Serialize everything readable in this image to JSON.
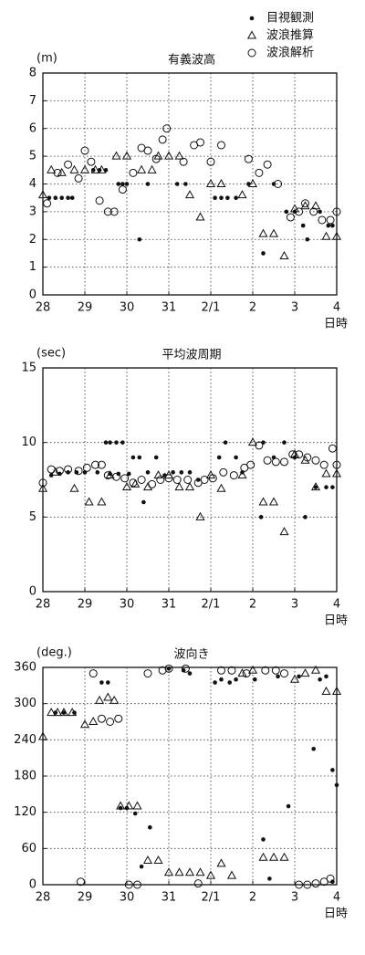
{
  "chart_data": [
    {
      "type": "scatter",
      "title": "有義波高",
      "ylabel": "(m)",
      "xlabel": "日時",
      "xlim": [
        0,
        7
      ],
      "ylim": [
        0,
        8
      ],
      "grid": true,
      "xticks": [
        {
          "value": 0,
          "label": "28"
        },
        {
          "value": 1,
          "label": "29"
        },
        {
          "value": 2,
          "label": "30"
        },
        {
          "value": 3,
          "label": "31"
        },
        {
          "value": 4,
          "label": "2/1"
        },
        {
          "value": 5,
          "label": "2"
        },
        {
          "value": 6,
          "label": "3"
        },
        {
          "value": 7,
          "label": "4"
        }
      ],
      "yticks": [
        0,
        1,
        2,
        3,
        4,
        5,
        6,
        7,
        8
      ],
      "series": [
        {
          "name": "目視観測",
          "marker": "dot",
          "color": "#111",
          "x": [
            0.15,
            0.3,
            0.45,
            0.6,
            0.7,
            1.2,
            1.35,
            1.5,
            1.8,
            1.9,
            2.0,
            2.3,
            2.5,
            3.2,
            3.4,
            4.1,
            4.25,
            4.4,
            4.6,
            4.9,
            5.25,
            5.5,
            5.8,
            6.0,
            6.2,
            6.3,
            6.6,
            6.8,
            6.9
          ],
          "values": [
            3.5,
            3.5,
            3.5,
            3.5,
            3.5,
            4.5,
            4.5,
            4.5,
            4,
            4,
            4,
            2,
            4,
            4,
            4,
            3.5,
            3.5,
            3.5,
            3.5,
            4,
            1.5,
            4,
            3,
            3,
            2.5,
            2,
            3,
            2.5,
            2.5
          ]
        },
        {
          "name": "波浪推算",
          "marker": "triangle",
          "color": "#111",
          "x": [
            0,
            0.2,
            0.45,
            0.75,
            1.0,
            1.25,
            1.4,
            1.75,
            2.0,
            2.35,
            2.6,
            2.75,
            3.0,
            3.25,
            3.5,
            3.75,
            4.0,
            4.25,
            4.75,
            5.0,
            5.25,
            5.5,
            5.75,
            6.0,
            6.25,
            6.5,
            6.75,
            7.0
          ],
          "values": [
            3.6,
            4.5,
            4.4,
            4.5,
            4.5,
            4.5,
            4.5,
            5,
            5,
            4.5,
            4.5,
            5,
            5,
            5,
            3.6,
            2.8,
            4,
            4,
            3.6,
            4,
            2.2,
            2.2,
            1.4,
            3.1,
            3.2,
            3.2,
            2.1,
            2.1
          ]
        },
        {
          "name": "波浪解析",
          "marker": "circle",
          "color": "#111",
          "x": [
            0.1,
            0.35,
            0.6,
            0.85,
            1.0,
            1.15,
            1.35,
            1.55,
            1.7,
            1.9,
            2.15,
            2.35,
            2.5,
            2.7,
            2.85,
            2.95,
            3.35,
            3.6,
            3.75,
            4.0,
            4.25,
            4.9,
            5.15,
            5.35,
            5.6,
            5.9,
            6.1,
            6.25,
            6.45,
            6.65,
            6.85,
            7.0
          ],
          "values": [
            3.3,
            4.4,
            4.7,
            4.2,
            5.2,
            4.8,
            3.4,
            3.0,
            3.0,
            3.8,
            4.4,
            5.3,
            5.2,
            4.9,
            5.6,
            6,
            4.8,
            5.4,
            5.5,
            4.8,
            5.4,
            4.9,
            4.4,
            4.7,
            4.0,
            2.8,
            3.0,
            3.3,
            3.0,
            2.7,
            2.7,
            3.0
          ]
        }
      ]
    },
    {
      "type": "scatter",
      "title": "平均波周期",
      "ylabel": "(sec)",
      "xlabel": "日時",
      "xlim": [
        0,
        7
      ],
      "ylim": [
        0,
        15
      ],
      "grid": true,
      "xticks": [
        {
          "value": 0,
          "label": "28"
        },
        {
          "value": 1,
          "label": "29"
        },
        {
          "value": 2,
          "label": "30"
        },
        {
          "value": 3,
          "label": "31"
        },
        {
          "value": 4,
          "label": "2/1"
        },
        {
          "value": 5,
          "label": "2"
        },
        {
          "value": 6,
          "label": "3"
        },
        {
          "value": 7,
          "label": "4"
        }
      ],
      "yticks": [
        0,
        5,
        10,
        15
      ],
      "series": [
        {
          "marker": "dot",
          "color": "#111",
          "x": [
            0.2,
            0.4,
            0.6,
            0.8,
            1.0,
            1.3,
            1.5,
            1.6,
            1.75,
            1.9,
            1.6,
            1.8,
            2.05,
            2.15,
            2.3,
            2.4,
            2.5,
            2.7,
            2.9,
            3.1,
            3.3,
            3.5,
            3.7,
            4.2,
            4.35,
            4.6,
            4.75,
            5.2,
            5.25,
            5.5,
            5.75,
            6.0,
            6.25,
            6.5,
            6.75,
            6.9
          ],
          "values": [
            7.8,
            7.9,
            8,
            8,
            8,
            8,
            10,
            10,
            10,
            10,
            7.9,
            7.9,
            7.9,
            9,
            9,
            6,
            8,
            9,
            7.8,
            8,
            8,
            8,
            7.5,
            9,
            10,
            9,
            8,
            5,
            10,
            9,
            10,
            9,
            5,
            7,
            7,
            7
          ]
        },
        {
          "marker": "triangle",
          "color": "#111",
          "x": [
            0,
            0.3,
            0.75,
            1.1,
            1.4,
            1.6,
            2.0,
            2.2,
            2.5,
            2.75,
            3.0,
            3.25,
            3.5,
            3.75,
            4.0,
            4.25,
            4.75,
            5.0,
            5.25,
            5.5,
            5.75,
            6.0,
            6.25,
            6.5,
            6.75,
            7.0
          ],
          "values": [
            6.9,
            8,
            6.9,
            6,
            6,
            7.8,
            7,
            7.2,
            7,
            7.8,
            7.8,
            7,
            7,
            5,
            7.8,
            6.9,
            7.8,
            10,
            6,
            6,
            4,
            9.2,
            8.8,
            7,
            7.9,
            7.9
          ]
        },
        {
          "marker": "circle",
          "color": "#111",
          "x": [
            0,
            0.2,
            0.4,
            0.6,
            0.85,
            1.05,
            1.25,
            1.4,
            1.55,
            1.75,
            1.95,
            2.15,
            2.35,
            2.6,
            2.8,
            3.0,
            3.2,
            3.45,
            3.7,
            3.85,
            4.05,
            4.3,
            4.55,
            4.8,
            4.95,
            5.15,
            5.35,
            5.55,
            5.75,
            5.95,
            6.1,
            6.3,
            6.5,
            6.7,
            6.9,
            7.0
          ],
          "values": [
            7.3,
            8.2,
            8.1,
            8.2,
            8.1,
            8.3,
            8.5,
            8.5,
            7.8,
            7.7,
            7.6,
            7.3,
            7.5,
            7.2,
            7.5,
            7.6,
            7.5,
            7.5,
            7.3,
            7.5,
            7.6,
            8,
            7.8,
            8.3,
            8.5,
            9.8,
            8.8,
            8.7,
            8.7,
            9.2,
            9.2,
            9,
            8.8,
            8.5,
            9.6,
            8.5
          ]
        }
      ]
    },
    {
      "type": "scatter",
      "title": "波向き",
      "ylabel": "(deg.)",
      "xlabel": "日時",
      "xlim": [
        0,
        7
      ],
      "ylim": [
        0,
        360
      ],
      "grid": true,
      "xticks": [
        {
          "value": 0,
          "label": "28"
        },
        {
          "value": 1,
          "label": "29"
        },
        {
          "value": 2,
          "label": "30"
        },
        {
          "value": 3,
          "label": "31"
        },
        {
          "value": 4,
          "label": "2/1"
        },
        {
          "value": 5,
          "label": "2"
        },
        {
          "value": 6,
          "label": "3"
        },
        {
          "value": 7,
          "label": "4"
        }
      ],
      "yticks": [
        0,
        60,
        120,
        180,
        240,
        300,
        360
      ],
      "series": [
        {
          "marker": "dot",
          "color": "#111",
          "x": [
            0.3,
            0.5,
            0.75,
            1.4,
            1.55,
            1.85,
            2.0,
            2.2,
            2.35,
            2.55,
            3.0,
            3.35,
            3.5,
            4.1,
            4.25,
            4.45,
            4.6,
            5.05,
            5.25,
            5.4,
            5.6,
            5.85,
            6.1,
            6.45,
            6.6,
            6.75,
            6.9,
            6.9,
            7.0
          ],
          "values": [
            285,
            285,
            285,
            335,
            335,
            127,
            127,
            118,
            30,
            95,
            358,
            355,
            350,
            335,
            340,
            335,
            340,
            340,
            75,
            10,
            345,
            130,
            345,
            225,
            340,
            345,
            5,
            190,
            165
          ]
        },
        {
          "marker": "triangle",
          "color": "#111",
          "x": [
            0,
            0.2,
            0.35,
            0.5,
            0.7,
            1.0,
            1.2,
            1.35,
            1.55,
            1.7,
            1.85,
            2.05,
            2.25,
            2.5,
            2.75,
            3.0,
            3.25,
            3.5,
            3.75,
            4.0,
            4.25,
            4.5,
            4.75,
            5.0,
            5.25,
            5.5,
            5.75,
            6.0,
            6.25,
            6.5,
            6.75,
            7.0
          ],
          "values": [
            245,
            285,
            285,
            285,
            285,
            265,
            270,
            305,
            310,
            305,
            130,
            130,
            130,
            40,
            40,
            20,
            20,
            20,
            20,
            15,
            35,
            15,
            350,
            355,
            45,
            45,
            45,
            340,
            350,
            355,
            320,
            320
          ]
        },
        {
          "marker": "circle",
          "color": "#111",
          "x": [
            0.9,
            1.2,
            1.4,
            1.6,
            1.8,
            2.05,
            2.25,
            2.5,
            2.85,
            3.0,
            3.4,
            3.7,
            4.25,
            4.5,
            4.85,
            5.3,
            5.55,
            5.75,
            6.1,
            6.3,
            6.5,
            6.7,
            6.85
          ],
          "values": [
            5,
            350,
            275,
            270,
            275,
            0,
            0,
            350,
            355,
            358,
            358,
            2,
            355,
            355,
            350,
            355,
            355,
            350,
            0,
            0,
            2,
            5,
            10
          ]
        }
      ]
    }
  ]
}
